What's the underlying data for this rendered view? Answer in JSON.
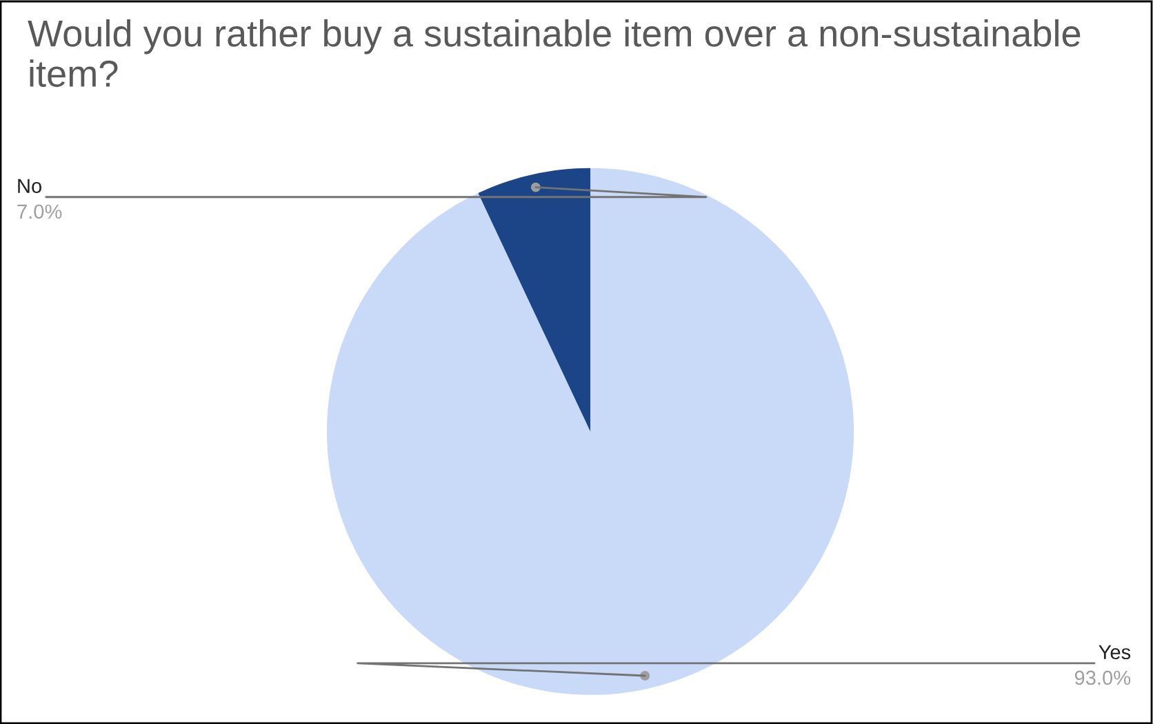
{
  "chart_data": {
    "type": "pie",
    "title": "Would you rather buy a sustainable item over a non-sustainable item?",
    "categories": [
      "Yes",
      "No"
    ],
    "values": [
      93.0,
      7.0
    ],
    "colors": [
      "#c9daf8",
      "#1c4587"
    ],
    "value_labels": [
      "93.0%",
      "7.0%"
    ],
    "legend": false
  }
}
